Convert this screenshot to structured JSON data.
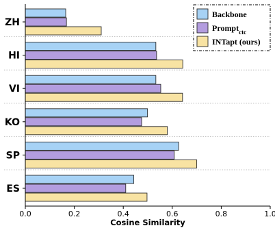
{
  "chart_data": {
    "type": "bar",
    "orientation": "horizontal",
    "categories": [
      "ZH",
      "HI",
      "VI",
      "KO",
      "SP",
      "ES"
    ],
    "series": [
      {
        "name": "Backbone",
        "color": "#a7d2f5",
        "values": [
          0.165,
          0.533,
          0.533,
          0.499,
          0.626,
          0.443
        ]
      },
      {
        "name": "Prompt",
        "name_subscript": "ctc",
        "color": "#b39ddf",
        "values": [
          0.168,
          0.536,
          0.553,
          0.475,
          0.608,
          0.41
        ]
      },
      {
        "name": "INTapt (ours)",
        "color": "#f8e3a3",
        "values": [
          0.31,
          0.643,
          0.642,
          0.58,
          0.7,
          0.497
        ]
      }
    ],
    "xlabel": "Cosine Similarity",
    "ylabel": "",
    "xlim": [
      0.0,
      1.0
    ],
    "xticks": [
      "0.0",
      "0.2",
      "0.4",
      "0.6",
      "0.8",
      "1.0"
    ],
    "legend_position": "top-right",
    "grid": "horizontal dotted separators between groups"
  }
}
